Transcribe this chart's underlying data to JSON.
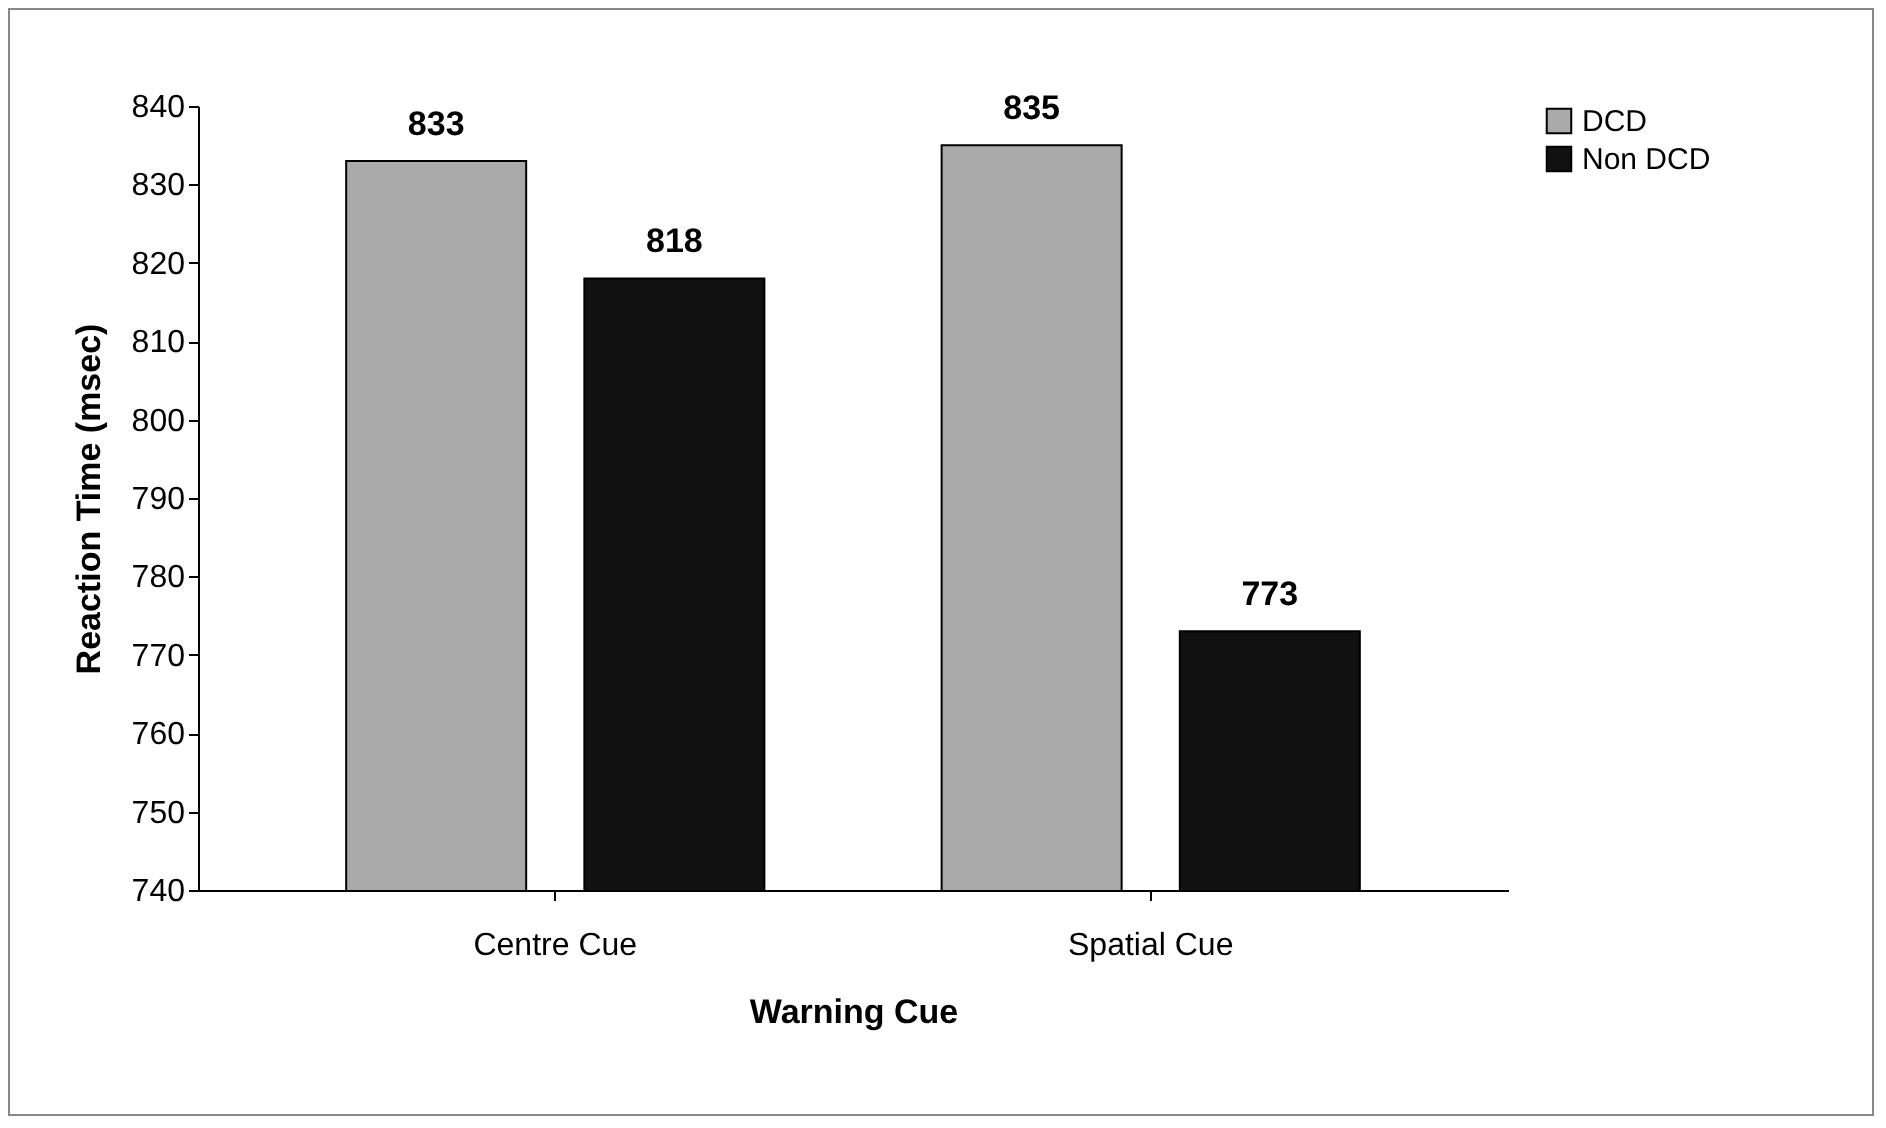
{
  "chart_data": {
    "type": "bar",
    "xlabel": "Warning Cue",
    "ylabel": "Reaction Time (msec)",
    "categories": [
      "Centre Cue",
      "Spatial Cue"
    ],
    "series": [
      {
        "name": "DCD",
        "color": "#aaaaaa",
        "values": [
          833,
          835
        ]
      },
      {
        "name": "Non DCD",
        "color": "#111111",
        "values": [
          818,
          773
        ]
      }
    ],
    "ylim": [
      740,
      840
    ],
    "yticks": [
      740,
      750,
      760,
      770,
      780,
      790,
      800,
      810,
      820,
      830,
      840
    ],
    "grid": false,
    "legend": "right",
    "data_labels": true
  }
}
